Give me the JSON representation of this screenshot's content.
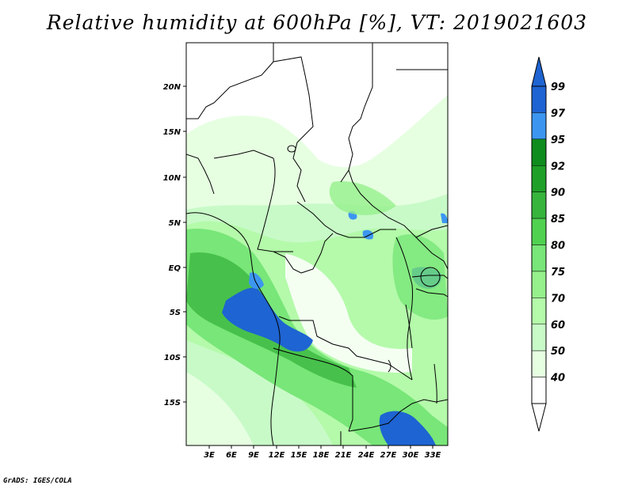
{
  "title": "Relative humidity at 600hPa [%], VT: 2019021603",
  "credit": "GrADS: IGES/COLA",
  "map": {
    "region": "Central Africa",
    "lat_range": [
      -20,
      24
    ],
    "lon_range": [
      0,
      35
    ],
    "lat_ticks": [
      "20N",
      "15N",
      "10N",
      "5N",
      "EQ",
      "5S",
      "10S",
      "15S"
    ],
    "lon_ticks": [
      "3E",
      "6E",
      "9E",
      "12E",
      "15E",
      "18E",
      "21E",
      "24E",
      "27E",
      "30E",
      "33E"
    ]
  },
  "colorbar": {
    "labels": [
      "99",
      "97",
      "95",
      "92",
      "90",
      "85",
      "80",
      "75",
      "70",
      "60",
      "50",
      "40"
    ],
    "colors": [
      "#1e64d2",
      "#3c96f0",
      "#0f8c1e",
      "#1ea028",
      "#37b43c",
      "#50d250",
      "#78e678",
      "#96f08c",
      "#b4faaa",
      "#c8fac8",
      "#e6ffe1",
      "#ffffff"
    ],
    "above_color": "#1e64d2",
    "below_color": "#ffffff"
  }
}
